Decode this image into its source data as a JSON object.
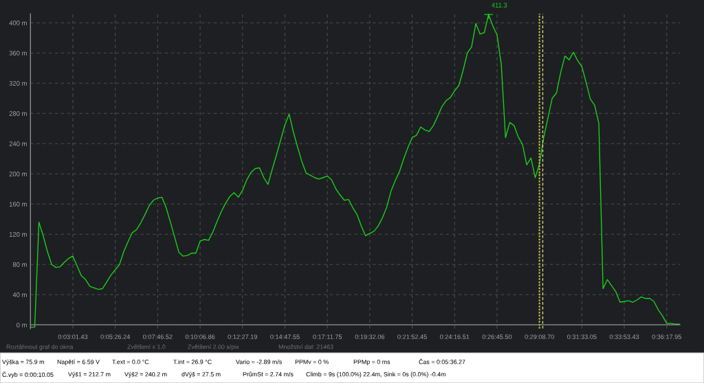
{
  "chart_data": {
    "type": "line",
    "categories": [
      null,
      null,
      null,
      null,
      null,
      null,
      null,
      null,
      null,
      null,
      "0:03:01.43",
      null,
      null,
      null,
      null,
      null,
      null,
      null,
      null,
      null,
      "0:05:26.24",
      null,
      null,
      null,
      null,
      null,
      null,
      null,
      null,
      null,
      "0:07:46.52",
      null,
      null,
      null,
      null,
      null,
      null,
      null,
      null,
      null,
      "0:10:06.86",
      null,
      null,
      null,
      null,
      null,
      null,
      null,
      null,
      null,
      "0:12:27.19",
      null,
      null,
      null,
      null,
      null,
      null,
      null,
      null,
      null,
      "0:14:47.55",
      null,
      null,
      null,
      null,
      null,
      null,
      null,
      null,
      null,
      "0:17:11.75",
      null,
      null,
      null,
      null,
      null,
      null,
      null,
      null,
      null,
      "0:19:32.06",
      null,
      null,
      null,
      null,
      null,
      null,
      null,
      null,
      null,
      "0:21:52.45",
      null,
      null,
      null,
      null,
      null,
      null,
      null,
      null,
      null,
      "0:24:16.51",
      null,
      null,
      null,
      null,
      null,
      null,
      null,
      null,
      null,
      "0:26:45.50",
      null,
      null,
      null,
      null,
      null,
      null,
      null,
      null,
      null,
      "0:29:08.70",
      null,
      null,
      null,
      null,
      null,
      null,
      null,
      null,
      null,
      "0:31:33.05",
      null,
      null,
      null,
      null,
      null,
      null,
      null,
      null,
      null,
      "0:33:53.43",
      null,
      null,
      null,
      null,
      null,
      null,
      null,
      null,
      null,
      "0:36:17.95",
      null,
      null,
      null
    ],
    "series": [
      {
        "color": "#19d119",
        "values": [
          -3,
          -3,
          136,
          118,
          97,
          80,
          76,
          77,
          83,
          88,
          91,
          78,
          65,
          60,
          51,
          49,
          47,
          48,
          57,
          66,
          73,
          80,
          97,
          110,
          122,
          126,
          135,
          146,
          158,
          165,
          168,
          169,
          155,
          136,
          116,
          96,
          91,
          92,
          95,
          95,
          111,
          113,
          112,
          123,
          137,
          150,
          161,
          170,
          175,
          169,
          178,
          192,
          202,
          207,
          208,
          195,
          186,
          206,
          225,
          245,
          265,
          279,
          255,
          235,
          216,
          201,
          198,
          195,
          193,
          195,
          197,
          192,
          180,
          172,
          165,
          166,
          155,
          146,
          131,
          118,
          121,
          124,
          131,
          142,
          156,
          177,
          191,
          203,
          220,
          235,
          248,
          251,
          262,
          258,
          256,
          264,
          276,
          289,
          297,
          301,
          310,
          317,
          337,
          360,
          368,
          399,
          385,
          387,
          411,
          396,
          384,
          345,
          248,
          268,
          264,
          249,
          239,
          212,
          221,
          195,
          213,
          248,
          274,
          300,
          307,
          334,
          356,
          351,
          361,
          350,
          342,
          321,
          299,
          291,
          267,
          48,
          60,
          52,
          44,
          30,
          31,
          32,
          30,
          33,
          37,
          35,
          35,
          31,
          20,
          12,
          2,
          2,
          1,
          1
        ]
      }
    ],
    "ylim": [
      -5,
      412
    ],
    "yticks": [
      {
        "value": 0,
        "label": "0 m"
      },
      {
        "value": 40,
        "label": "40 m"
      },
      {
        "value": 80,
        "label": "80 m"
      },
      {
        "value": 120,
        "label": "120 m"
      },
      {
        "value": 160,
        "label": "160 m"
      },
      {
        "value": 200,
        "label": "200 m"
      },
      {
        "value": 240,
        "label": "240 m"
      },
      {
        "value": 280,
        "label": "280 m"
      },
      {
        "value": 320,
        "label": "320 m"
      },
      {
        "value": 360,
        "label": "360 m"
      },
      {
        "value": 400,
        "label": "400 m"
      }
    ],
    "grid": true,
    "ref_lines": [
      {
        "axis": "x",
        "value": "0:29:08.70",
        "color": "#c9bd3a",
        "line_style": "dotted"
      }
    ],
    "annotations": [
      "411.3",
      "Roztáhnout graf do okna",
      "Zvětšení x 1.0",
      "Zvětšení 2.00 s/pix",
      "Množství dat: 21463",
      "Výška = 75.9 m",
      "Napětí = 6.59 V",
      "T.ext = 0.0 °C",
      "T.int = 26.9 °C",
      "Vario = -2.89 m/s",
      "PPMv = 0 %",
      "PPMp = 0 ms",
      "Čas = 0:05:36.27",
      "Č.vyb = 0:00:10.05",
      "Výš1 = 212.7 m",
      "Výš2 = 240.2 m",
      "dVýš = 27.5 m",
      "PrůmSt = 2.74 m/s",
      "Climb = 9s (100.0%) 22.4m, Sink = 0s (0.0%) -0.4m"
    ]
  }
}
